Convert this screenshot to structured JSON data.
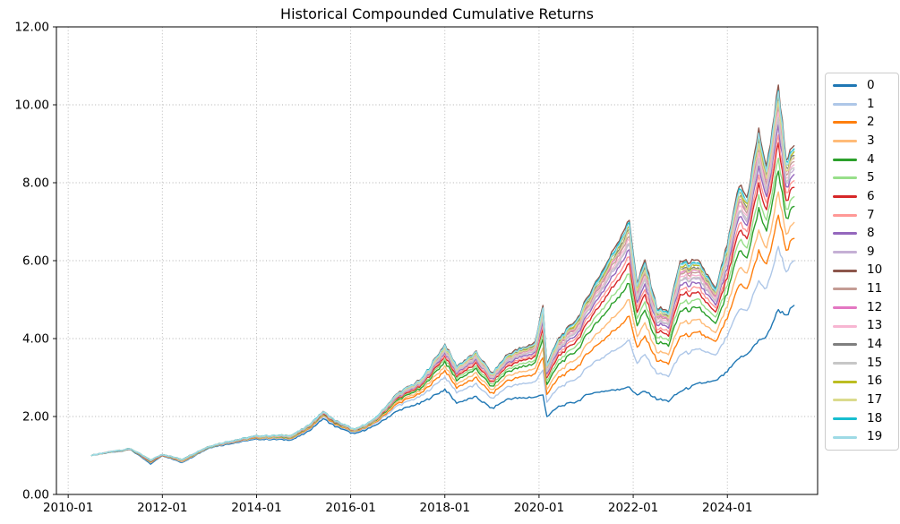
{
  "figure": {
    "title": "Historical Compounded Cumulative Returns"
  },
  "chart_data": {
    "type": "line",
    "title": "Historical Compounded Cumulative Returns",
    "xlabel": "",
    "ylabel": "",
    "grid": true,
    "grid_style": "dotted",
    "legend_position": "right",
    "ylim": [
      0,
      12
    ],
    "xlim": [
      "2009-10",
      "2025-12"
    ],
    "y_tick_values": [
      0,
      2,
      4,
      6,
      8,
      10,
      12
    ],
    "y_tick_labels": [
      "0.00",
      "2.00",
      "4.00",
      "6.00",
      "8.00",
      "10.00",
      "12.00"
    ],
    "x_tick_months": [
      "2010-01",
      "2012-01",
      "2014-01",
      "2016-01",
      "2018-01",
      "2020-01",
      "2022-01",
      "2024-01"
    ],
    "x": [
      "2010-07",
      "2011-01",
      "2011-05",
      "2011-10",
      "2012-01",
      "2012-06",
      "2013-01",
      "2013-06",
      "2014-01",
      "2014-10",
      "2015-02",
      "2015-06",
      "2015-09",
      "2016-02",
      "2016-07",
      "2017-01",
      "2017-07",
      "2018-01",
      "2018-04",
      "2018-09",
      "2019-01",
      "2019-05",
      "2019-12",
      "2020-02",
      "2020-03",
      "2020-06",
      "2020-11",
      "2021-02",
      "2021-06",
      "2021-12",
      "2022-02",
      "2022-04",
      "2022-07",
      "2022-10",
      "2023-01",
      "2023-06",
      "2023-10",
      "2024-01",
      "2024-04",
      "2024-06",
      "2024-09",
      "2024-11",
      "2025-02",
      "2025-04",
      "2025-06"
    ],
    "series": [
      {
        "name": "0",
        "color": "#1f77b4",
        "values": [
          1.0,
          1.1,
          1.15,
          0.78,
          1.0,
          0.82,
          1.2,
          1.3,
          1.42,
          1.4,
          1.6,
          1.95,
          1.75,
          1.55,
          1.75,
          2.15,
          2.35,
          2.7,
          2.35,
          2.5,
          2.2,
          2.45,
          2.5,
          2.55,
          2.0,
          2.25,
          2.4,
          2.6,
          2.65,
          2.75,
          2.55,
          2.65,
          2.45,
          2.4,
          2.65,
          2.85,
          2.9,
          3.15,
          3.5,
          3.6,
          3.95,
          4.05,
          4.75,
          4.6,
          4.85
        ]
      },
      {
        "name": "1",
        "color": "#aec7e8",
        "values": [
          1.0,
          1.11,
          1.16,
          0.81,
          1.01,
          0.84,
          1.21,
          1.32,
          1.44,
          1.43,
          1.64,
          2.0,
          1.79,
          1.58,
          1.8,
          2.28,
          2.52,
          3.02,
          2.62,
          2.82,
          2.45,
          2.77,
          2.89,
          3.19,
          2.38,
          2.74,
          3.0,
          3.33,
          3.56,
          3.95,
          3.35,
          3.59,
          3.11,
          3.04,
          3.59,
          3.72,
          3.56,
          4.06,
          4.75,
          4.72,
          5.46,
          5.25,
          6.36,
          5.72,
          6.0
        ]
      },
      {
        "name": "2",
        "color": "#ff7f0e",
        "values": [
          1.0,
          1.11,
          1.16,
          0.82,
          1.01,
          0.85,
          1.22,
          1.33,
          1.45,
          1.45,
          1.66,
          2.03,
          1.81,
          1.6,
          1.82,
          2.34,
          2.6,
          3.18,
          2.75,
          2.98,
          2.58,
          2.93,
          3.09,
          3.52,
          2.57,
          2.99,
          3.3,
          3.69,
          4.02,
          4.56,
          3.75,
          4.06,
          3.44,
          3.37,
          4.06,
          4.15,
          3.89,
          4.52,
          5.37,
          5.28,
          6.22,
          5.86,
          7.17,
          6.28,
          6.57
        ]
      },
      {
        "name": "3",
        "color": "#ffbb78",
        "values": [
          1.0,
          1.11,
          1.16,
          0.83,
          1.02,
          0.86,
          1.22,
          1.33,
          1.46,
          1.46,
          1.68,
          2.04,
          1.83,
          1.61,
          1.84,
          2.38,
          2.66,
          3.3,
          2.84,
          3.1,
          2.67,
          3.05,
          3.23,
          3.75,
          2.7,
          3.16,
          3.52,
          3.95,
          4.34,
          4.99,
          4.03,
          4.39,
          3.67,
          3.6,
          4.39,
          4.46,
          4.12,
          4.84,
          5.81,
          5.68,
          6.76,
          6.29,
          7.74,
          6.68,
          6.98
        ]
      },
      {
        "name": "4",
        "color": "#2ca02c",
        "values": [
          1.0,
          1.11,
          1.16,
          0.84,
          1.02,
          0.87,
          1.22,
          1.34,
          1.47,
          1.47,
          1.69,
          2.06,
          1.84,
          1.62,
          1.86,
          2.43,
          2.72,
          3.41,
          2.94,
          3.21,
          2.76,
          3.16,
          3.37,
          3.98,
          2.84,
          3.34,
          3.73,
          4.21,
          4.67,
          5.42,
          4.32,
          4.73,
          3.91,
          3.83,
          4.73,
          4.77,
          4.36,
          5.17,
          6.26,
          6.08,
          7.3,
          6.72,
          8.32,
          7.08,
          7.39
        ]
      },
      {
        "name": "5",
        "color": "#98df8a",
        "values": [
          1.0,
          1.11,
          1.16,
          0.85,
          1.02,
          0.87,
          1.23,
          1.34,
          1.47,
          1.48,
          1.7,
          2.07,
          1.85,
          1.62,
          1.87,
          2.46,
          2.76,
          3.48,
          3.0,
          3.28,
          2.81,
          3.23,
          3.45,
          4.11,
          2.92,
          3.44,
          3.86,
          4.37,
          4.86,
          5.67,
          4.49,
          4.93,
          4.05,
          3.96,
          4.93,
          4.96,
          4.5,
          5.36,
          6.53,
          6.32,
          7.62,
          6.97,
          8.66,
          7.32,
          7.64
        ]
      },
      {
        "name": "6",
        "color": "#d62728",
        "values": [
          1.0,
          1.11,
          1.16,
          0.85,
          1.02,
          0.88,
          1.23,
          1.34,
          1.48,
          1.49,
          1.71,
          2.08,
          1.86,
          1.63,
          1.88,
          2.48,
          2.79,
          3.55,
          3.05,
          3.35,
          2.87,
          3.3,
          3.54,
          4.25,
          3.0,
          3.55,
          3.99,
          4.52,
          5.06,
          5.93,
          4.66,
          5.13,
          4.19,
          4.1,
          5.13,
          5.14,
          4.64,
          5.56,
          6.79,
          6.56,
          7.95,
          7.23,
          9.01,
          7.56,
          7.88
        ]
      },
      {
        "name": "7",
        "color": "#ff9896",
        "values": [
          1.0,
          1.12,
          1.17,
          0.86,
          1.02,
          0.88,
          1.23,
          1.35,
          1.48,
          1.49,
          1.72,
          2.09,
          1.87,
          1.64,
          1.88,
          2.5,
          2.82,
          3.6,
          3.09,
          3.4,
          2.9,
          3.35,
          3.59,
          4.34,
          3.05,
          3.62,
          4.08,
          4.63,
          5.19,
          6.1,
          4.77,
          5.26,
          4.28,
          4.19,
          5.26,
          5.27,
          4.73,
          5.69,
          6.97,
          6.72,
          8.16,
          7.4,
          9.24,
          7.72,
          8.05
        ]
      },
      {
        "name": "8",
        "color": "#9467bd",
        "values": [
          1.0,
          1.12,
          1.17,
          0.86,
          1.02,
          0.89,
          1.23,
          1.35,
          1.49,
          1.5,
          1.72,
          2.1,
          1.87,
          1.64,
          1.89,
          2.52,
          2.84,
          3.64,
          3.13,
          3.44,
          2.94,
          3.39,
          3.65,
          4.44,
          3.11,
          3.69,
          4.16,
          4.73,
          5.32,
          6.28,
          4.89,
          5.4,
          4.38,
          4.29,
          5.4,
          5.39,
          4.83,
          5.82,
          7.15,
          6.88,
          8.38,
          7.58,
          9.47,
          7.88,
          8.21
        ]
      },
      {
        "name": "9",
        "color": "#c5b0d5",
        "values": [
          1.0,
          1.12,
          1.17,
          0.87,
          1.03,
          0.89,
          1.23,
          1.35,
          1.49,
          1.5,
          1.73,
          2.1,
          1.88,
          1.64,
          1.9,
          2.53,
          2.86,
          3.68,
          3.16,
          3.48,
          2.97,
          3.43,
          3.69,
          4.51,
          3.15,
          3.74,
          4.23,
          4.81,
          5.41,
          6.41,
          4.97,
          5.5,
          4.45,
          4.36,
          5.5,
          5.49,
          4.9,
          5.91,
          7.28,
          7.0,
          8.54,
          7.71,
          9.64,
          8.0,
          8.34
        ]
      },
      {
        "name": "10",
        "color": "#8c564b",
        "values": [
          1.0,
          1.12,
          1.17,
          0.88,
          1.03,
          0.9,
          1.24,
          1.36,
          1.5,
          1.52,
          1.75,
          2.13,
          1.9,
          1.66,
          1.92,
          2.6,
          2.95,
          3.85,
          3.3,
          3.65,
          3.1,
          3.6,
          3.9,
          4.85,
          3.35,
          4.0,
          4.55,
          5.2,
          5.9,
          7.05,
          5.4,
          6.0,
          4.8,
          4.7,
          6.0,
          5.95,
          5.25,
          6.4,
          7.95,
          7.6,
          9.35,
          8.35,
          10.5,
          8.6,
          8.95
        ]
      },
      {
        "name": "11",
        "color": "#c49c94",
        "values": [
          1.0,
          1.12,
          1.17,
          0.87,
          1.03,
          0.89,
          1.24,
          1.35,
          1.49,
          1.51,
          1.74,
          2.11,
          1.89,
          1.65,
          1.9,
          2.56,
          2.89,
          3.74,
          3.21,
          3.54,
          3.01,
          3.49,
          3.76,
          4.62,
          3.22,
          3.83,
          4.34,
          4.94,
          5.58,
          6.62,
          5.12,
          5.67,
          4.57,
          4.47,
          5.67,
          5.64,
          5.02,
          6.08,
          7.51,
          7.2,
          8.81,
          7.92,
          9.93,
          8.2,
          8.54
        ]
      },
      {
        "name": "12",
        "color": "#e377c2",
        "values": [
          1.0,
          1.12,
          1.17,
          0.87,
          1.03,
          0.89,
          1.24,
          1.36,
          1.49,
          1.51,
          1.74,
          2.12,
          1.89,
          1.65,
          1.91,
          2.56,
          2.9,
          3.76,
          3.22,
          3.56,
          3.03,
          3.51,
          3.79,
          4.67,
          3.24,
          3.86,
          4.38,
          4.99,
          5.64,
          6.71,
          5.17,
          5.73,
          4.61,
          4.52,
          5.73,
          5.7,
          5.06,
          6.14,
          7.59,
          7.28,
          8.92,
          8.01,
          10.04,
          8.28,
          8.62
        ]
      },
      {
        "name": "13",
        "color": "#f7b6d2",
        "values": [
          1.0,
          1.12,
          1.17,
          0.87,
          1.03,
          0.89,
          1.24,
          1.35,
          1.49,
          1.51,
          1.73,
          2.11,
          1.88,
          1.65,
          1.9,
          2.55,
          2.88,
          3.71,
          3.19,
          3.51,
          2.99,
          3.46,
          3.73,
          4.57,
          3.19,
          3.79,
          4.29,
          4.89,
          5.51,
          6.53,
          5.06,
          5.6,
          4.52,
          4.42,
          5.6,
          5.58,
          4.97,
          6.01,
          7.42,
          7.12,
          8.7,
          7.83,
          9.81,
          8.12,
          8.46
        ]
      },
      {
        "name": "14",
        "color": "#7f7f7f",
        "values": [
          1.0,
          1.12,
          1.17,
          0.87,
          1.03,
          0.9,
          1.24,
          1.36,
          1.5,
          1.51,
          1.74,
          2.12,
          1.89,
          1.65,
          1.91,
          2.57,
          2.91,
          3.78,
          3.24,
          3.58,
          3.05,
          3.53,
          3.82,
          4.71,
          3.27,
          3.9,
          4.42,
          5.04,
          5.71,
          6.79,
          5.23,
          5.8,
          4.66,
          4.56,
          5.8,
          5.76,
          5.11,
          6.21,
          7.68,
          7.36,
          9.03,
          8.09,
          10.16,
          8.36,
          8.7
        ]
      },
      {
        "name": "15",
        "color": "#c7c7c7",
        "values": [
          1.0,
          1.12,
          1.17,
          0.87,
          1.03,
          0.89,
          1.23,
          1.35,
          1.49,
          1.5,
          1.73,
          2.11,
          1.88,
          1.65,
          1.9,
          2.54,
          2.87,
          3.69,
          3.17,
          3.49,
          2.97,
          3.44,
          3.7,
          4.53,
          3.16,
          3.76,
          4.25,
          4.84,
          5.45,
          6.45,
          5.0,
          5.53,
          4.47,
          4.38,
          5.53,
          5.52,
          4.92,
          5.95,
          7.33,
          7.04,
          8.59,
          7.75,
          9.7,
          8.04,
          8.38
        ]
      },
      {
        "name": "16",
        "color": "#bcbd22",
        "values": [
          1.0,
          1.12,
          1.17,
          0.88,
          1.03,
          0.9,
          1.24,
          1.36,
          1.5,
          1.52,
          1.74,
          2.12,
          1.89,
          1.66,
          1.91,
          2.58,
          2.93,
          3.8,
          3.26,
          3.6,
          3.06,
          3.55,
          3.84,
          4.76,
          3.3,
          3.93,
          4.46,
          5.1,
          5.77,
          6.88,
          5.29,
          5.87,
          4.71,
          4.61,
          5.87,
          5.83,
          5.16,
          6.27,
          7.77,
          7.44,
          9.13,
          8.18,
          10.27,
          8.44,
          8.79
        ]
      },
      {
        "name": "17",
        "color": "#dbdb8d",
        "values": [
          1.0,
          1.12,
          1.17,
          0.87,
          1.03,
          0.89,
          1.24,
          1.36,
          1.49,
          1.51,
          1.74,
          2.12,
          1.89,
          1.65,
          1.91,
          2.57,
          2.91,
          3.77,
          3.23,
          3.57,
          3.04,
          3.52,
          3.8,
          4.69,
          3.26,
          3.88,
          4.4,
          5.02,
          5.67,
          6.75,
          5.2,
          5.77,
          4.64,
          4.54,
          5.77,
          5.73,
          5.09,
          6.17,
          7.64,
          7.32,
          8.97,
          8.05,
          10.1,
          8.32,
          8.66
        ]
      },
      {
        "name": "18",
        "color": "#17becf",
        "values": [
          1.0,
          1.12,
          1.17,
          0.88,
          1.03,
          0.9,
          1.24,
          1.36,
          1.5,
          1.52,
          1.75,
          2.13,
          1.9,
          1.66,
          1.92,
          2.59,
          2.94,
          3.83,
          3.28,
          3.63,
          3.08,
          3.58,
          3.87,
          4.8,
          3.32,
          3.97,
          4.51,
          5.15,
          5.84,
          6.96,
          5.34,
          5.93,
          4.75,
          4.65,
          5.93,
          5.89,
          5.2,
          6.34,
          7.86,
          7.52,
          9.24,
          8.26,
          10.39,
          8.52,
          8.87
        ]
      },
      {
        "name": "19",
        "color": "#9edae5",
        "values": [
          1.0,
          1.12,
          1.17,
          0.88,
          1.03,
          0.9,
          1.24,
          1.36,
          1.5,
          1.52,
          1.75,
          2.12,
          1.9,
          1.66,
          1.92,
          2.59,
          2.93,
          3.82,
          3.27,
          3.62,
          3.07,
          3.57,
          3.86,
          4.78,
          3.31,
          3.95,
          4.49,
          5.12,
          5.8,
          6.92,
          5.32,
          5.9,
          4.73,
          4.63,
          5.9,
          5.86,
          5.18,
          6.3,
          7.82,
          7.48,
          9.19,
          8.22,
          10.33,
          8.48,
          8.83
        ]
      }
    ]
  },
  "colors": {
    "background": "#ffffff",
    "spine": "#000000",
    "grid": "#b0b0b0",
    "tick_text": "#000000",
    "legend_border": "#cccccc"
  }
}
